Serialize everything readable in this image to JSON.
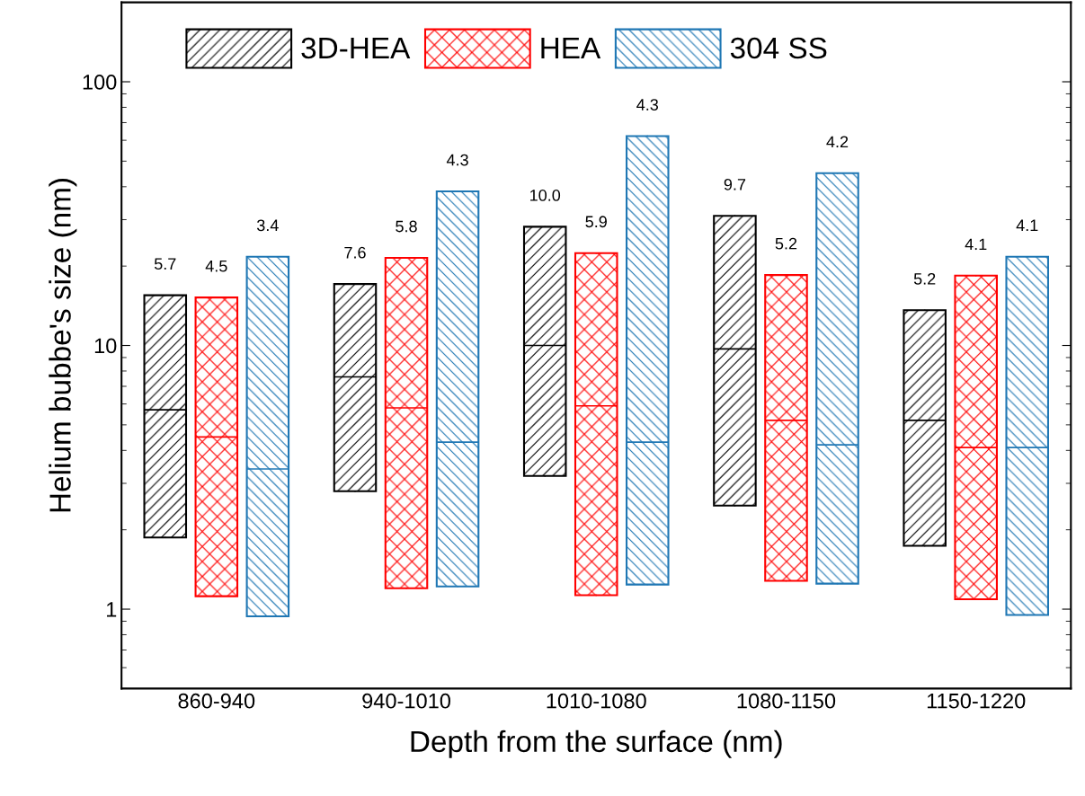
{
  "chart_data": {
    "type": "box",
    "xlabel": "Depth from the surface (nm)",
    "ylabel": "Helium bubbe's size (nm)",
    "categories": [
      "860-940",
      "940-1010",
      "1010-1080",
      "1080-1150",
      "1150-1220"
    ],
    "log": "y",
    "ylim": [
      0.5,
      200
    ],
    "yticks": [
      1,
      10,
      100
    ],
    "legend": "top",
    "grid": false,
    "series": [
      {
        "name": "3D-HEA",
        "color": "#000000",
        "value_labels": [
          "5.7",
          "7.6",
          "10.0",
          "9.7",
          "5.2"
        ],
        "boxes": [
          {
            "low": 1.87,
            "q1": 1.87,
            "median": 5.7,
            "q3": 15.5,
            "high": 15.5
          },
          {
            "low": 2.8,
            "q1": 2.8,
            "median": 7.6,
            "q3": 17.1,
            "high": 17.1
          },
          {
            "low": 3.2,
            "q1": 3.2,
            "median": 10.0,
            "q3": 28.2,
            "high": 28.2
          },
          {
            "low": 2.47,
            "q1": 2.47,
            "median": 9.7,
            "q3": 31.0,
            "high": 31.0
          },
          {
            "low": 1.74,
            "q1": 1.74,
            "median": 5.2,
            "q3": 13.6,
            "high": 13.6
          }
        ]
      },
      {
        "name": "HEA",
        "color": "#ff0000",
        "value_labels": [
          "4.5",
          "5.8",
          "5.9",
          "5.2",
          "4.1"
        ],
        "boxes": [
          {
            "low": 1.12,
            "q1": 1.12,
            "median": 4.5,
            "q3": 15.2,
            "high": 15.2
          },
          {
            "low": 1.2,
            "q1": 1.2,
            "median": 5.8,
            "q3": 21.5,
            "high": 21.5
          },
          {
            "low": 1.13,
            "q1": 1.13,
            "median": 5.9,
            "q3": 22.4,
            "high": 22.4
          },
          {
            "low": 1.28,
            "q1": 1.28,
            "median": 5.2,
            "q3": 18.5,
            "high": 18.5
          },
          {
            "low": 1.09,
            "q1": 1.09,
            "median": 4.1,
            "q3": 18.4,
            "high": 18.4
          }
        ]
      },
      {
        "name": "304 SS",
        "color": "#1f77b4",
        "value_labels": [
          "3.4",
          "4.3",
          "4.3",
          "4.2",
          "4.1"
        ],
        "boxes": [
          {
            "low": 0.94,
            "q1": 0.94,
            "median": 3.4,
            "q3": 21.7,
            "high": 21.7
          },
          {
            "low": 1.22,
            "q1": 1.22,
            "median": 4.3,
            "q3": 38.4,
            "high": 38.4
          },
          {
            "low": 1.24,
            "q1": 1.24,
            "median": 4.3,
            "q3": 62.2,
            "high": 62.2
          },
          {
            "low": 1.25,
            "q1": 1.25,
            "median": 4.2,
            "q3": 45.0,
            "high": 45.0
          },
          {
            "low": 0.95,
            "q1": 0.95,
            "median": 4.1,
            "q3": 21.7,
            "high": 21.7
          }
        ]
      }
    ]
  }
}
